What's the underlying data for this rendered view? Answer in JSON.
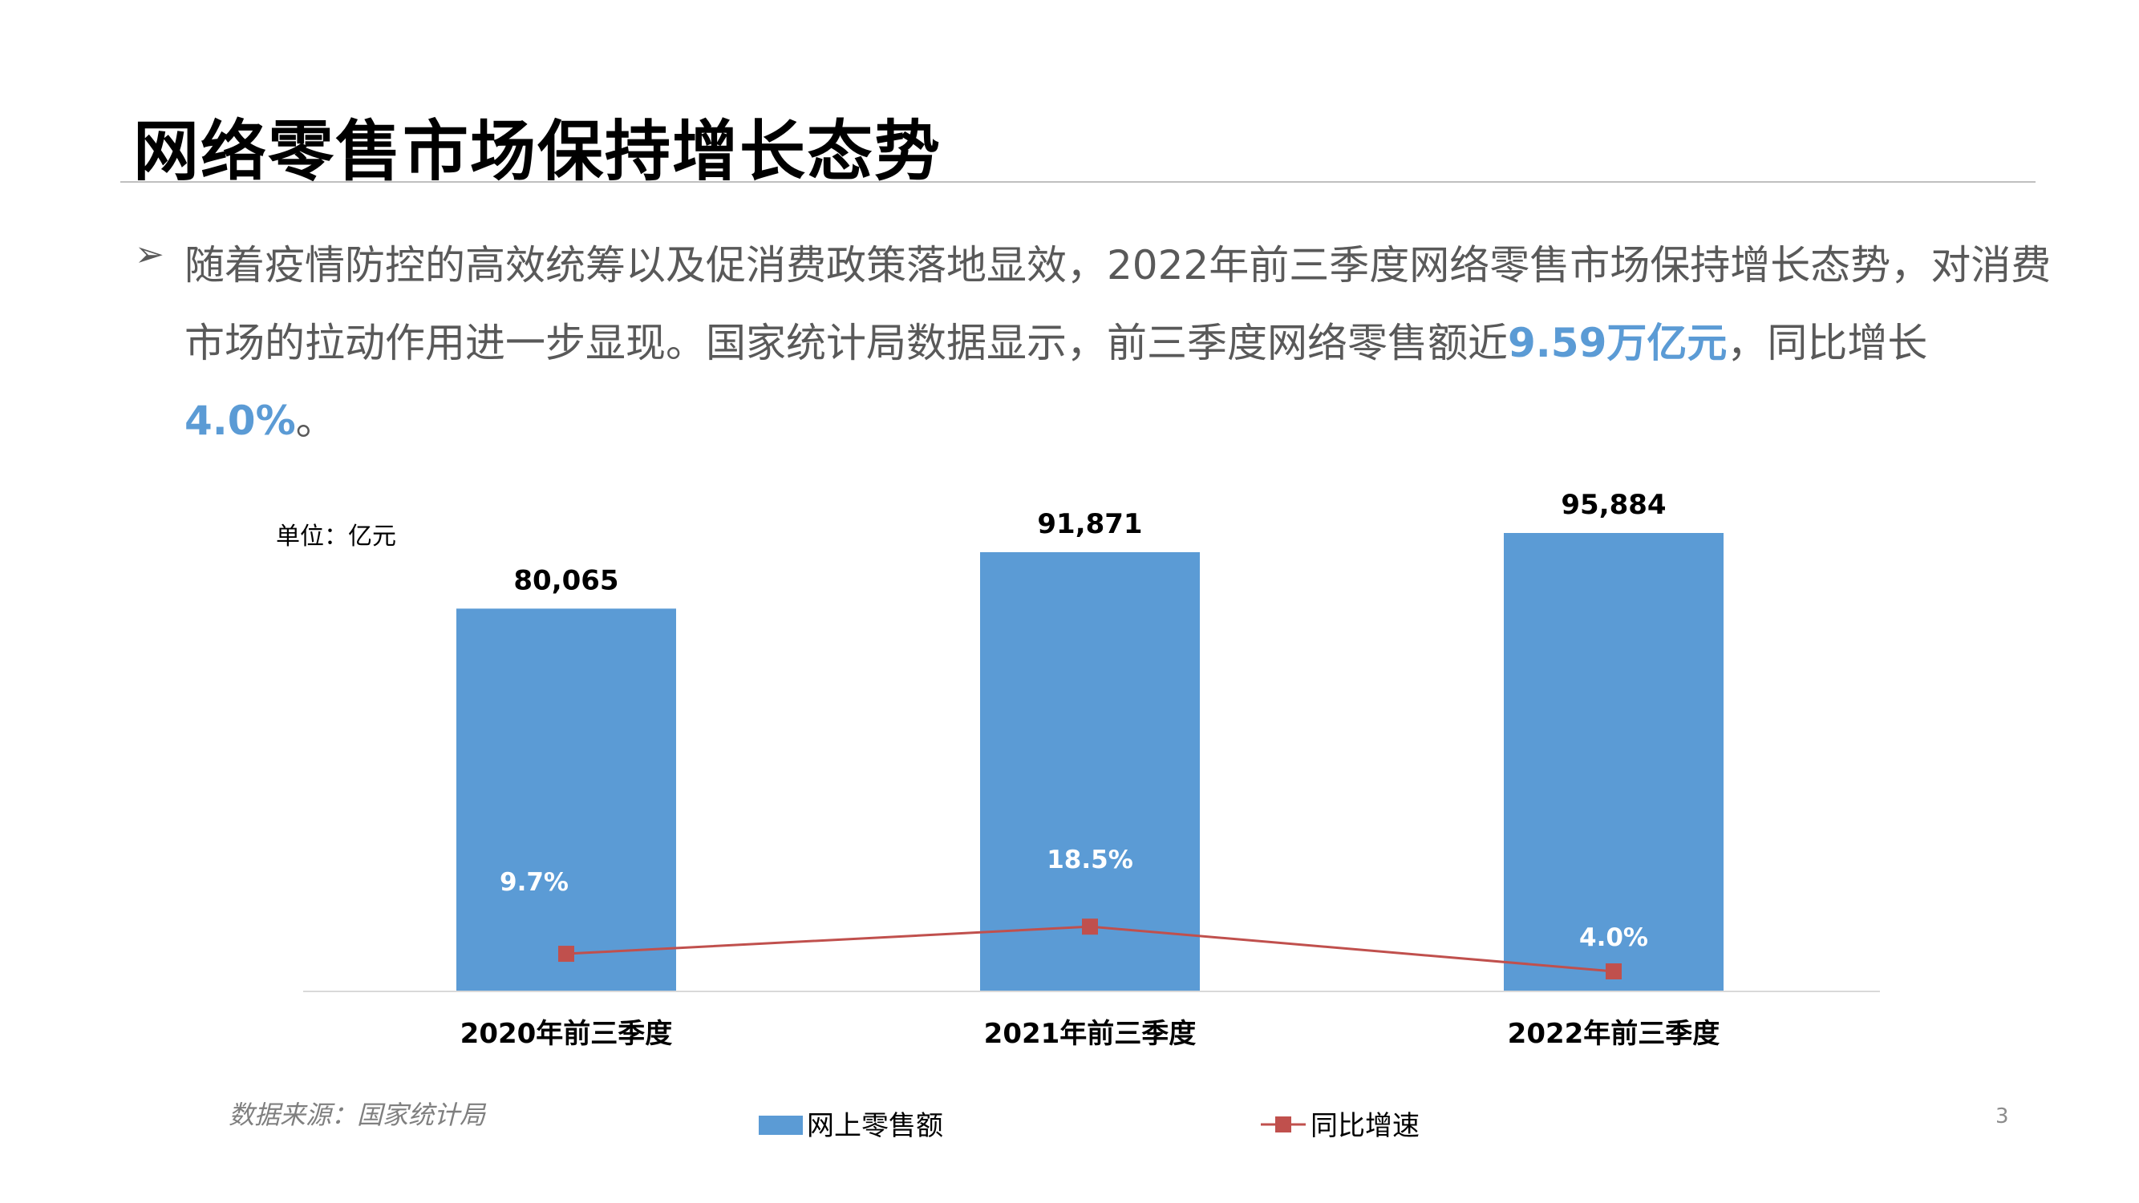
{
  "slide": {
    "title": "网络零售市场保持增长态势",
    "bullet": "➢",
    "para_parts": [
      "随着疫情防控的高效统筹以及促消费政策落地显效，2022年前三季度网络零售市场保持增长态势，对消费市场的拉动作用进一步显现。国家统计局数据显示，前三季度网络零售额近",
      "9.59万亿元",
      "，同比增长",
      "4.0%",
      "。"
    ],
    "source": "数据来源：国家统计局",
    "page_number": "3"
  },
  "chart_data": {
    "type": "bar+line",
    "unit_label": "单位：亿元",
    "categories": [
      "2020年前三季度",
      "2021年前三季度",
      "2022年前三季度"
    ],
    "series": [
      {
        "name": "网上零售额",
        "type": "bar",
        "color": "#5b9bd5",
        "values": [
          80065,
          91871,
          95884
        ],
        "labels": [
          "80,065",
          "91,871",
          "95,884"
        ]
      },
      {
        "name": "同比增速",
        "type": "line",
        "color": "#c0504d",
        "values": [
          9.7,
          18.5,
          4.0
        ],
        "labels": [
          "9.7%",
          "18.5%",
          "4.0%"
        ]
      }
    ],
    "legend_position": "bottom",
    "grid": false
  }
}
